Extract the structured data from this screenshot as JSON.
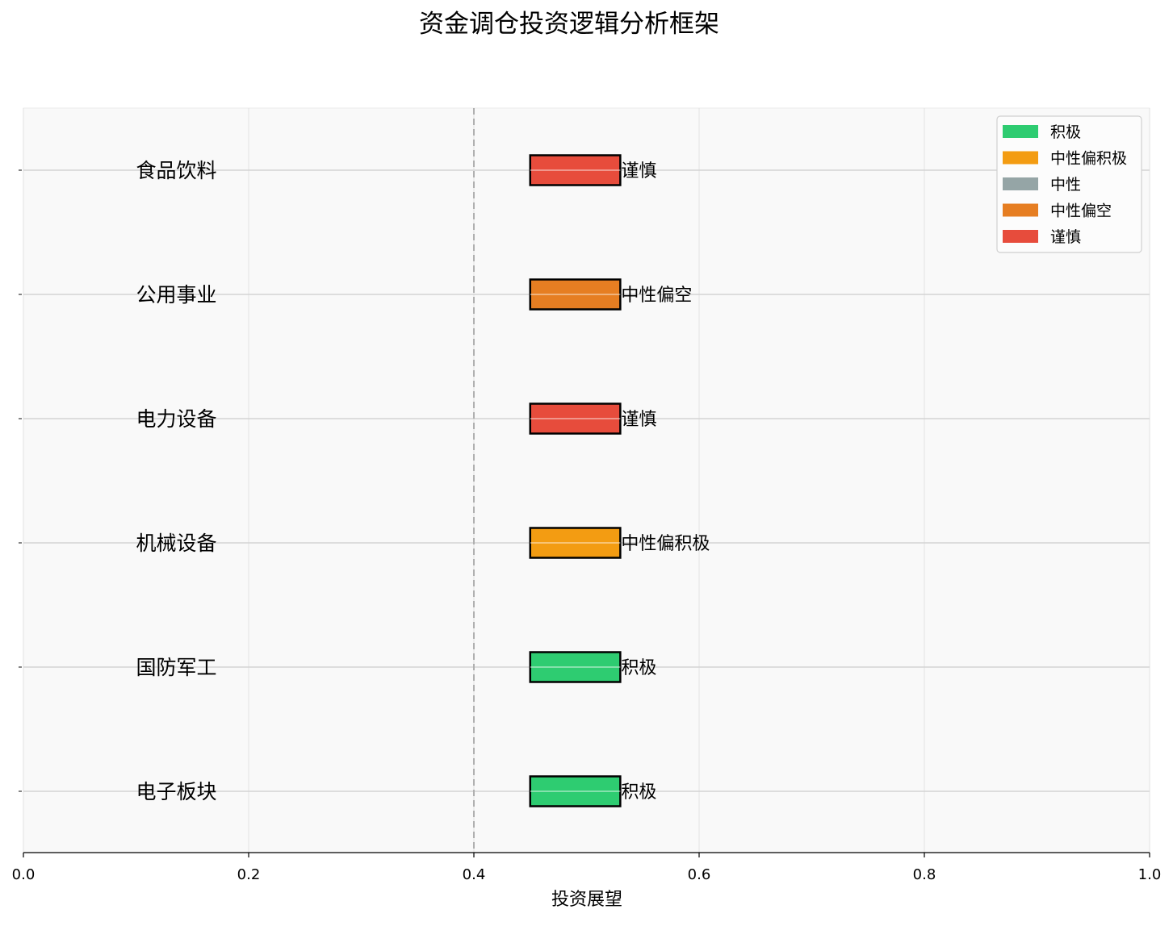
{
  "chart_data": {
    "type": "bar",
    "title": "资金调仓投资逻辑分析框架",
    "xlabel": "投资展望",
    "ylabel": "",
    "xlim": [
      0.0,
      1.0
    ],
    "xticks": [
      0.0,
      0.2,
      0.4,
      0.6,
      0.8,
      1.0
    ],
    "xtick_labels": [
      "0.0",
      "0.2",
      "0.4",
      "0.6",
      "0.8",
      "1.0"
    ],
    "reference_line": 0.4,
    "grid": true,
    "legend_position": "top-right",
    "legend": [
      {
        "label": "积极",
        "color": "#2ecc71"
      },
      {
        "label": "中性偏积极",
        "color": "#f39c12"
      },
      {
        "label": "中性",
        "color": "#95a5a6"
      },
      {
        "label": "中性偏空",
        "color": "#e67e22"
      },
      {
        "label": "谨慎",
        "color": "#e74c3c"
      }
    ],
    "categories": [
      "食品饮料",
      "公用事业",
      "电力设备",
      "机械设备",
      "国防军工",
      "电子板块"
    ],
    "category_label_x": 0.1,
    "bar_start": 0.45,
    "bar_end": 0.53,
    "ratings": [
      "谨慎",
      "中性偏空",
      "谨慎",
      "中性偏积极",
      "积极",
      "积极"
    ],
    "colors": [
      "#e74c3c",
      "#e67e22",
      "#e74c3c",
      "#f39c12",
      "#2ecc71",
      "#2ecc71"
    ]
  }
}
